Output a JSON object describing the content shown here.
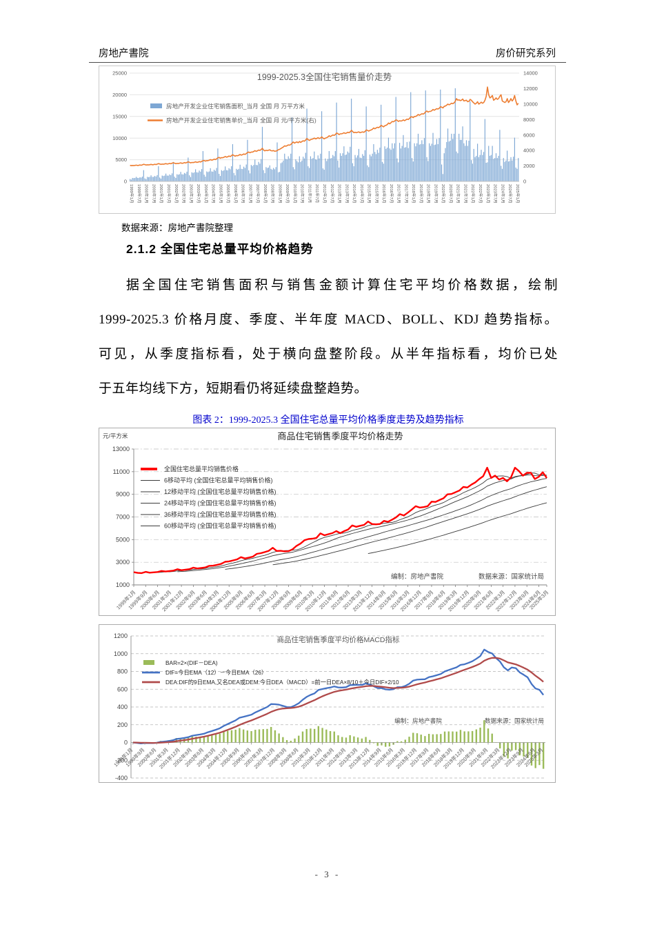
{
  "header": {
    "left": "房地产書院",
    "right": "房价研究系列"
  },
  "source_note": "数据来源：房地产書院整理",
  "section": {
    "heading": "2.1.2 全国住宅总量平均价格趋势",
    "paragraph_lines": [
      "据全国住宅销售面积与销售金额计算住宅平均价格数据，绘制",
      "1999-2025.3 价格月度、季度、半年度 MACD、BOLL、KDJ 趋势指标。",
      "可见，从季度指标看，处于横向盘整阶段。从半年指标看，均价已处",
      "于五年均线下方，短期看仍将延续盘整趋势。"
    ]
  },
  "figure_caption": "图表 2：1999-2025.3 全国住宅总量平均价格季度走势及趋势指标",
  "footer": {
    "page_number": "- 3 -"
  },
  "chart_data": [
    {
      "type": "bar+line",
      "title": "1999-2025.3全国住宅销售量价走势",
      "legend": [
        "房地产开发企业住宅销售面积_当月 全国 月 万平方米",
        "房地产开发企业住宅销售单价_当月 全国 月 元/平方米(右)"
      ],
      "left_axis": {
        "min": 0,
        "max": 25000,
        "ticks": [
          0,
          5000,
          10000,
          15000,
          20000,
          25000
        ]
      },
      "right_axis": {
        "min": 0,
        "max": 14000,
        "ticks": [
          0,
          2000,
          4000,
          6000,
          8000,
          10000,
          12000,
          14000
        ]
      },
      "colors": {
        "bar": "#7da7d4",
        "line": "#ED7D31"
      },
      "x_labels": [
        "1999年1月",
        "1999年7月",
        "2000年1月",
        "2000年7月",
        "2001年1月",
        "2001年7月",
        "2002年1月",
        "2002年7月",
        "2003年1月",
        "2003年7月",
        "2004年1月",
        "2004年7月",
        "2005年1月",
        "2005年7月",
        "2006年1月",
        "2006年7月",
        "2007年1月",
        "2007年7月",
        "2008年1月",
        "2008年7月",
        "2009年1月",
        "2009年7月",
        "2010年1月",
        "2010年7月",
        "2011年1月",
        "2011年7月",
        "2012年1月",
        "2012年7月",
        "2013年1月",
        "2013年7月",
        "2014年1月",
        "2014年7月",
        "2015年1月",
        "2015年7月",
        "2016年1月",
        "2016年7月",
        "2017年1月",
        "2017年7月",
        "2018年1月",
        "2018年7月",
        "2019年1月",
        "2019年7月",
        "2020年1月",
        "2020年7月",
        "2021年1月",
        "2021年7月",
        "2022年1月",
        "2022年7月",
        "2023年1月",
        "2023年7月",
        "2024年1月",
        "2024年7月",
        "2025年1月"
      ],
      "x_label_step_months": 6,
      "area_monthly": {
        "1999": [
          550,
          420,
          800,
          760,
          800,
          1050,
          820,
          800,
          950,
          880,
          1100,
          2600
        ],
        "2000": [
          700,
          520,
          1050,
          980,
          1050,
          1400,
          1050,
          1030,
          1250,
          1130,
          1450,
          3500
        ],
        "2001": [
          900,
          650,
          1350,
          1250,
          1350,
          1800,
          1350,
          1320,
          1600,
          1450,
          1850,
          4500
        ],
        "2002": [
          1100,
          800,
          1650,
          1550,
          1650,
          2200,
          1650,
          1600,
          1950,
          1800,
          2250,
          5500
        ],
        "2003": [
          1400,
          1000,
          2100,
          1950,
          2100,
          2800,
          2100,
          2050,
          2500,
          2250,
          2850,
          7000
        ],
        "2004": [
          1550,
          1100,
          2300,
          2150,
          2300,
          3050,
          2300,
          2250,
          2700,
          2450,
          3100,
          7600
        ],
        "2005": [
          1750,
          1250,
          2600,
          2400,
          2600,
          3450,
          2600,
          2550,
          3050,
          2800,
          3500,
          8600
        ],
        "2006": [
          1950,
          1400,
          2900,
          2700,
          2900,
          3850,
          2900,
          2850,
          3400,
          3100,
          3900,
          9600
        ],
        "2007": [
          2550,
          1850,
          3800,
          3550,
          3800,
          5050,
          3800,
          3750,
          4500,
          4100,
          5150,
          12600
        ],
        "2008": [
          2600,
          1900,
          3300,
          3100,
          3200,
          3700,
          2900,
          2700,
          3100,
          2800,
          3300,
          9000
        ],
        "2009": [
          2100,
          2200,
          4200,
          4400,
          4800,
          6400,
          5200,
          5100,
          5800,
          5300,
          6400,
          14800
        ],
        "2010": [
          3300,
          2800,
          5100,
          4700,
          4400,
          5800,
          4500,
          4800,
          5700,
          5300,
          6600,
          16800
        ],
        "2011": [
          3500,
          3100,
          5800,
          5200,
          5400,
          6900,
          5100,
          5000,
          6000,
          5300,
          6400,
          16200
        ],
        "2012": [
          3000,
          2700,
          5300,
          4700,
          5200,
          7000,
          5300,
          5400,
          6100,
          5800,
          7000,
          18200
        ],
        "2013": [
          4800,
          3200,
          6500,
          5900,
          6500,
          8100,
          6100,
          6200,
          6900,
          6600,
          8000,
          19100
        ],
        "2014": [
          4200,
          3500,
          6100,
          5500,
          6000,
          7500,
          5500,
          5400,
          6300,
          5900,
          7200,
          17300
        ],
        "2015": [
          3700,
          3300,
          6200,
          5800,
          6400,
          8600,
          6800,
          6300,
          7300,
          6600,
          7800,
          17700
        ],
        "2016": [
          4500,
          4100,
          8100,
          7500,
          7800,
          10100,
          7600,
          7300,
          8800,
          7600,
          8800,
          19500
        ],
        "2017": [
          5300,
          4400,
          8900,
          7600,
          8200,
          10700,
          7800,
          7900,
          9100,
          7700,
          9200,
          20600
        ],
        "2018": [
          5400,
          4600,
          8800,
          8100,
          8800,
          11000,
          8500,
          8600,
          9500,
          8600,
          10000,
          21000
        ],
        "2019": [
          5600,
          4700,
          8800,
          8200,
          8700,
          11200,
          8400,
          8500,
          9800,
          8600,
          10000,
          21200
        ],
        "2020": [
          3900,
          1700,
          6500,
          7700,
          9100,
          12200,
          9200,
          9400,
          11000,
          9800,
          11000,
          21500
        ],
        "2021": [
          6900,
          6500,
          11000,
          9600,
          9600,
          12700,
          8800,
          8200,
          9500,
          8200,
          9400,
          18500
        ],
        "2022": [
          4900,
          4100,
          7500,
          5600,
          5900,
          8700,
          5600,
          6100,
          7300,
          6100,
          6800,
          14400
        ],
        "2023": [
          4300,
          4400,
          8200,
          5900,
          6100,
          8200,
          5200,
          5400,
          6500,
          5400,
          5900,
          11900
        ],
        "2024": [
          3600,
          2900,
          5400,
          4500,
          4800,
          7100,
          4600,
          4700,
          5600,
          4800,
          5700,
          10100
        ],
        "2025": [
          3200,
          2900,
          5400
        ]
      },
      "price_monthly": {
        "1999": [
          2080,
          2030,
          2060,
          2040,
          2070,
          2100,
          2060,
          2080,
          2130,
          2090,
          2140,
          2210
        ],
        "2000": [
          2180,
          2120,
          2150,
          2130,
          2160,
          2200,
          2150,
          2170,
          2220,
          2180,
          2240,
          2300
        ],
        "2001": [
          2260,
          2200,
          2240,
          2220,
          2260,
          2300,
          2250,
          2270,
          2330,
          2280,
          2350,
          2420
        ],
        "2002": [
          2350,
          2290,
          2330,
          2310,
          2350,
          2400,
          2340,
          2360,
          2430,
          2380,
          2450,
          2530
        ],
        "2003": [
          2470,
          2400,
          2450,
          2430,
          2470,
          2530,
          2460,
          2490,
          2560,
          2510,
          2590,
          2680
        ],
        "2004": [
          2700,
          2620,
          2690,
          2680,
          2740,
          2820,
          2750,
          2790,
          2880,
          2830,
          2920,
          3040
        ],
        "2005": [
          3100,
          3000,
          3080,
          3060,
          3130,
          3220,
          3140,
          3180,
          3280,
          3220,
          3320,
          3450
        ],
        "2006": [
          3350,
          3260,
          3340,
          3320,
          3390,
          3480,
          3400,
          3450,
          3550,
          3490,
          3600,
          3740
        ],
        "2007": [
          3800,
          3700,
          3800,
          3790,
          3870,
          3980,
          3890,
          3950,
          4060,
          4000,
          4120,
          4280
        ],
        "2008": [
          4050,
          3950,
          4020,
          3980,
          4030,
          4080,
          3970,
          3950,
          3990,
          3900,
          3920,
          3980
        ],
        "2009": [
          4100,
          4150,
          4250,
          4350,
          4450,
          4600,
          4550,
          4620,
          4720,
          4680,
          4780,
          4950
        ],
        "2010": [
          5100,
          4950,
          5050,
          5100,
          5000,
          5150,
          5050,
          5150,
          5250,
          5200,
          5350,
          5550
        ],
        "2011": [
          5400,
          5300,
          5400,
          5450,
          5500,
          5600,
          5500,
          5550,
          5650,
          5550,
          5600,
          5750
        ],
        "2012": [
          5600,
          5500,
          5600,
          5650,
          5750,
          5900,
          5800,
          5900,
          6000,
          5950,
          6050,
          6250
        ],
        "2013": [
          6200,
          6050,
          6150,
          6150,
          6200,
          6300,
          6200,
          6250,
          6350,
          6300,
          6400,
          6600
        ],
        "2014": [
          6450,
          6300,
          6350,
          6300,
          6350,
          6400,
          6300,
          6350,
          6400,
          6350,
          6450,
          6650
        ],
        "2015": [
          6600,
          6500,
          6600,
          6650,
          6750,
          6900,
          6800,
          6900,
          7000,
          6950,
          7050,
          7250
        ],
        "2016": [
          7150,
          7050,
          7200,
          7250,
          7350,
          7550,
          7450,
          7600,
          7750,
          7700,
          7800,
          7950
        ],
        "2017": [
          7900,
          7750,
          7850,
          7800,
          7850,
          7950,
          7850,
          7950,
          8050,
          8000,
          8150,
          8350
        ],
        "2018": [
          8350,
          8250,
          8400,
          8400,
          8500,
          8650,
          8550,
          8650,
          8750,
          8700,
          8800,
          9000
        ],
        "2019": [
          9100,
          8950,
          9050,
          9050,
          9150,
          9300,
          9200,
          9300,
          9400,
          9350,
          9450,
          9650
        ],
        "2020": [
          9600,
          9500,
          9700,
          9750,
          9850,
          10000,
          9900,
          10000,
          10100,
          10050,
          10150,
          10350
        ],
        "2021": [
          10700,
          10500,
          10550,
          10450,
          10500,
          10650,
          10400,
          10450,
          10500,
          10300,
          10350,
          10600
        ],
        "2022": [
          10500,
          10300,
          10150,
          10000,
          10100,
          10300,
          10000,
          10100,
          10250,
          10100,
          10200,
          10500
        ],
        "2023": [
          11000,
          12200,
          11200,
          10800,
          10900,
          11100,
          10500,
          10600,
          10800,
          10600,
          10700,
          11000
        ],
        "2024": [
          11200,
          10400,
          10300,
          10200,
          10300,
          10700,
          10200,
          10400,
          10700,
          10400,
          10600,
          11100
        ],
        "2025": [
          10400,
          9900,
          10100
        ]
      }
    },
    {
      "type": "line",
      "title": "商品住宅销售季度平均价格走势",
      "y_unit": "元/平方米",
      "legend": [
        "全国住宅总量平均销售价格",
        "6移动平均 (全国住宅总量平均销售价格)",
        "12移动平均 (全国住宅总量平均销售价格)",
        "24移动平均 (全国住宅总量平均销售价格)",
        "36移动平均 (全国住宅总量平均销售价格)",
        "60移动平均 (全国住宅总量平均销售价格)"
      ],
      "ma_windows": [
        6,
        12,
        24,
        36,
        60
      ],
      "y_axis": {
        "min": 1000,
        "max": 13000,
        "ticks": [
          1000,
          3000,
          5000,
          7000,
          9000,
          11000,
          13000
        ]
      },
      "colors": {
        "main": "#ff0000",
        "ma": "#3a3a3a"
      },
      "annotation": {
        "left": "编制：房地产書院",
        "right": "数据来源：国家统计局"
      },
      "x_labels": [
        "1999年1月",
        "1999年9月",
        "2000年6月",
        "2001年3月",
        "2001年12月",
        "2002年9月",
        "2003年6月",
        "2004年3月",
        "2004年12月",
        "2005年9月",
        "2006年6月",
        "2007年3月",
        "2007年12月",
        "2008年9月",
        "2009年6月",
        "2010年3月",
        "2010年12月",
        "2011年9月",
        "2012年6月",
        "2013年3月",
        "2013年12月",
        "2014年9月",
        "2015年6月",
        "2016年3月",
        "2016年12月",
        "2017年9月",
        "2018年6月",
        "2019年3月",
        "2019年12月",
        "2020年9月",
        "2021年6月",
        "2022年3月",
        "2022年12月",
        "2023年9月",
        "2024年6月",
        "2025年3月"
      ],
      "x_label_step_quarters": 3,
      "values": [
        2120,
        2060,
        2040,
        2150,
        2080,
        2110,
        2140,
        2230,
        2180,
        2220,
        2260,
        2380,
        2300,
        2340,
        2390,
        2520,
        2450,
        2490,
        2540,
        2680,
        2700,
        2770,
        2850,
        3040,
        3080,
        3160,
        3250,
        3450,
        3330,
        3410,
        3500,
        3740,
        3800,
        3900,
        4010,
        4280,
        4000,
        4010,
        3960,
        3980,
        4150,
        4450,
        4650,
        4950,
        5050,
        5080,
        5150,
        5550,
        5380,
        5480,
        5570,
        5750,
        5570,
        5750,
        5900,
        6250,
        6130,
        6220,
        6300,
        6600,
        6370,
        6350,
        6380,
        6650,
        6570,
        6750,
        6950,
        7250,
        7130,
        7380,
        7650,
        7950,
        7830,
        7870,
        7950,
        8350,
        8330,
        8500,
        8650,
        9000,
        9030,
        9180,
        9330,
        9650,
        9600,
        9850,
        10050,
        10350,
        10600,
        11350,
        10450,
        10650,
        10300,
        10450,
        10150,
        10500,
        11350,
        11050,
        10650,
        10900,
        10900,
        10350,
        10550,
        10950,
        10450
      ]
    },
    {
      "type": "macd",
      "title": "商品住宅销售季度平均价格MACD指标",
      "legend": [
        "BAR=2×(DIF－DEA)",
        "DIF=今日EMA（12）－今日EMA（26）",
        "DEA:DIF的9日EMA,又名DEA或DEM:今日DEA（MACD）=前一日DEA×8/10＋今日DIF×2/10"
      ],
      "params": {
        "ema_fast": 12,
        "ema_slow": 26,
        "dea_weight_prev": 0.8,
        "dea_weight_dif": 0.2,
        "bar_multiplier": 2
      },
      "y_axis": {
        "min": -400,
        "max": 1200,
        "ticks": [
          -400,
          -200,
          0,
          200,
          400,
          600,
          800,
          1000,
          1200
        ]
      },
      "colors": {
        "bar": "#9BBB59",
        "dif": "#4472C4",
        "dea": "#B04A4A"
      },
      "annotation": {
        "left": "编制：房地产書院",
        "right": "数据来源：国家统计局"
      },
      "x_labels": [
        "1999年1月",
        "1999年9月",
        "2000年6月",
        "2001年3月",
        "2001年12月",
        "2002年9月",
        "2003年6月",
        "2004年3月",
        "2004年12月",
        "2005年9月",
        "2006年6月",
        "2007年3月",
        "2007年12月",
        "2008年9月",
        "2009年6月",
        "2010年3月",
        "2010年12月",
        "2011年9月",
        "2012年6月",
        "2013年3月",
        "2013年12月",
        "2014年9月",
        "2015年6月",
        "2016年3月",
        "2016年12月",
        "2017年9月",
        "2018年6月",
        "2019年3月",
        "2019年12月",
        "2020年9月",
        "2021年6月",
        "2022年3月",
        "2022年12月",
        "2023年9月",
        "2024年6月",
        "2025年3月"
      ],
      "x_label_step_quarters": 3,
      "source_series": "computed from quarterly values of chart 2 per legend formulas"
    }
  ]
}
